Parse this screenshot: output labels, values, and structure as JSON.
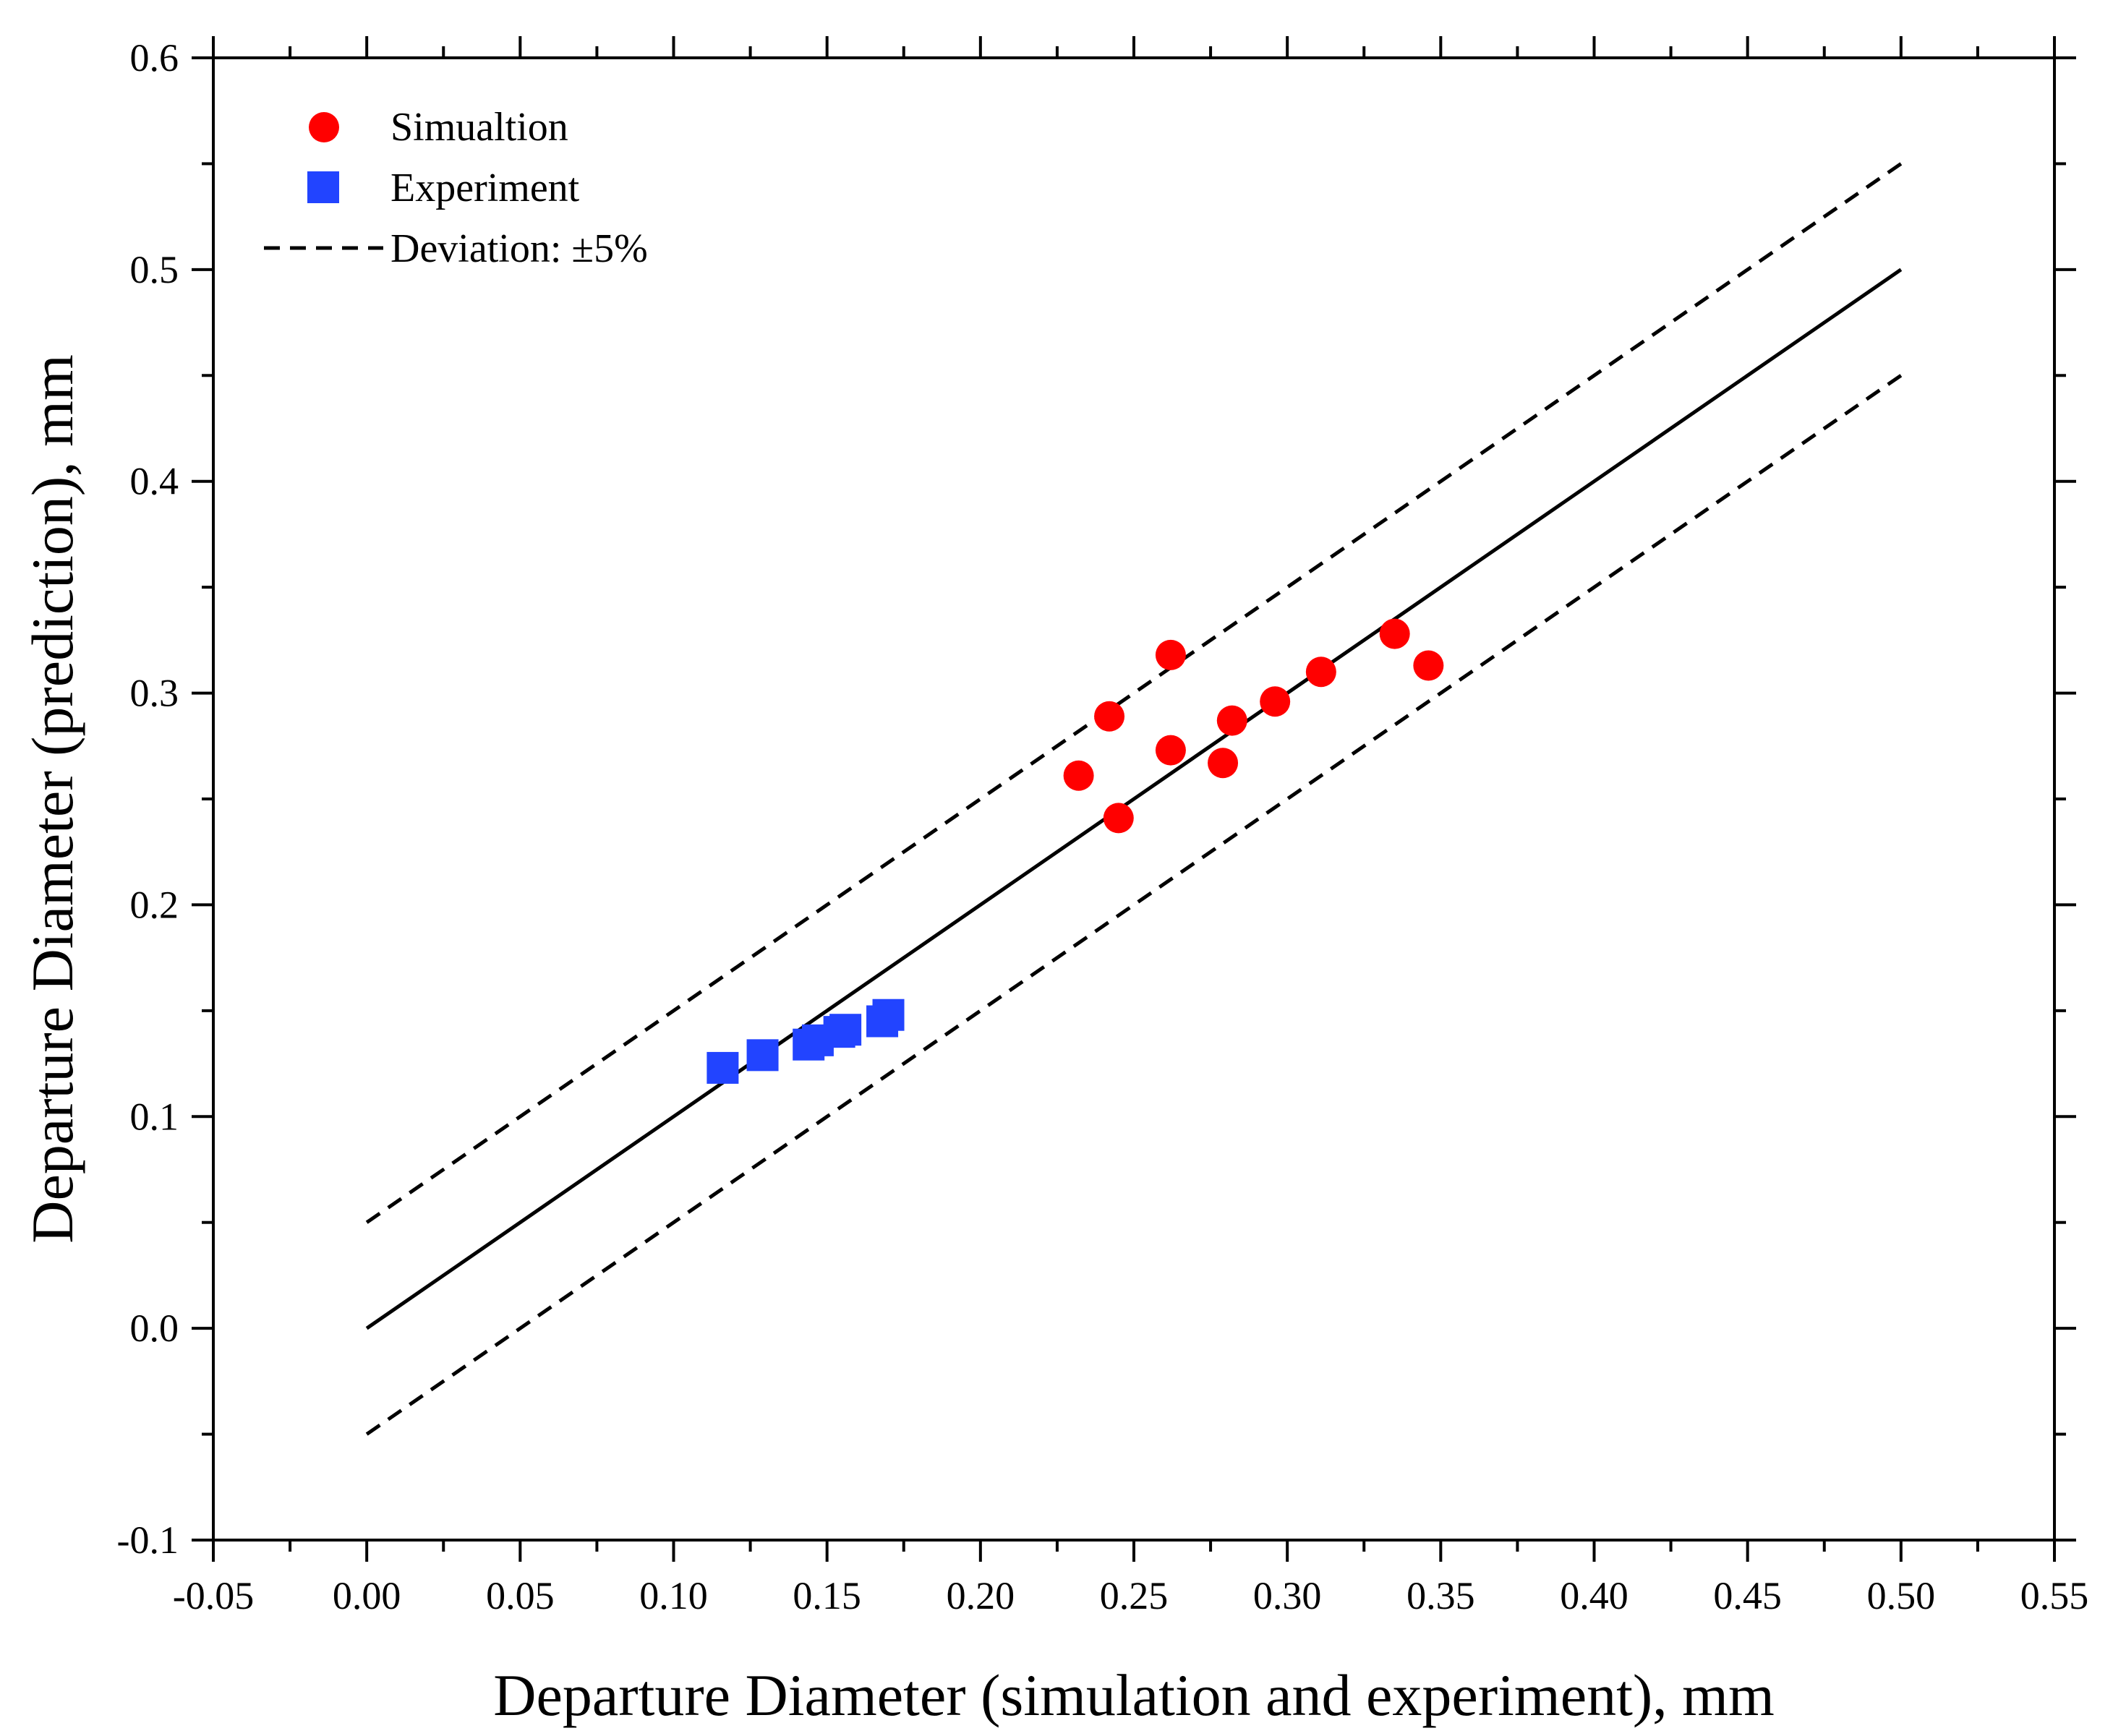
{
  "chart_data": {
    "type": "scatter",
    "title": "",
    "xlabel": "Departure Diameter (simulation and experiment), mm",
    "ylabel": "Departure Diameter (prediction), mm",
    "xlim": [
      -0.05,
      0.55
    ],
    "ylim": [
      -0.1,
      0.6
    ],
    "xticks": [
      "-0.05",
      "0.00",
      "0.05",
      "0.10",
      "0.15",
      "0.20",
      "0.25",
      "0.30",
      "0.35",
      "0.40",
      "0.45",
      "0.50",
      "0.55"
    ],
    "yticks": [
      "-0.1",
      "0.0",
      "0.1",
      "0.2",
      "0.3",
      "0.4",
      "0.5",
      "0.6"
    ],
    "grid": false,
    "legend_position": "top-left",
    "series": [
      {
        "name": "Simualtion",
        "marker": "circle",
        "color": "#ff0000",
        "x": [
          0.232,
          0.242,
          0.245,
          0.262,
          0.262,
          0.279,
          0.282,
          0.296,
          0.311,
          0.335,
          0.346
        ],
        "y": [
          0.261,
          0.289,
          0.241,
          0.318,
          0.273,
          0.267,
          0.287,
          0.296,
          0.31,
          0.328,
          0.313
        ]
      },
      {
        "name": "Experiment",
        "marker": "square",
        "color": "#2244ff",
        "x": [
          0.116,
          0.129,
          0.144,
          0.147,
          0.154,
          0.156,
          0.168,
          0.17
        ],
        "y": [
          0.123,
          0.129,
          0.134,
          0.136,
          0.14,
          0.141,
          0.145,
          0.148
        ]
      }
    ],
    "reference_lines": [
      {
        "name": "y = x",
        "style": "solid",
        "x": [
          0,
          0.5
        ],
        "y": [
          0,
          0.5
        ]
      },
      {
        "name": "upper +5%",
        "style": "dashed",
        "x": [
          0,
          0.5
        ],
        "y": [
          0.05,
          0.55
        ]
      },
      {
        "name": "lower -5%",
        "style": "dashed",
        "x": [
          0,
          0.5
        ],
        "y": [
          -0.05,
          0.45
        ]
      }
    ],
    "legend": [
      {
        "label": "Simualtion",
        "marker": "circle",
        "color": "#ff0000"
      },
      {
        "label": "Experiment",
        "marker": "square",
        "color": "#2244ff"
      },
      {
        "label": "Deviation: ±5%",
        "marker": "dashed-line",
        "color": "#000000"
      }
    ]
  }
}
